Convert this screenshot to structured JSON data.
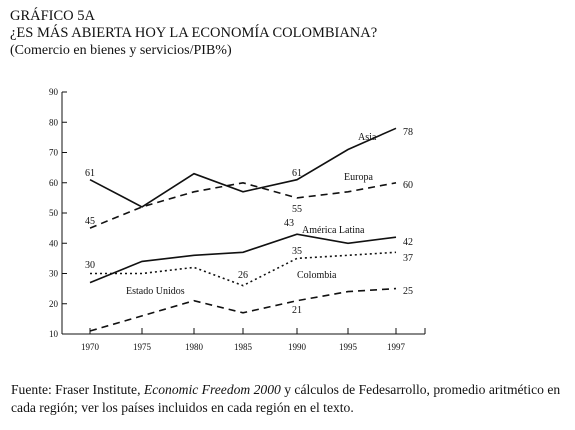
{
  "header": {
    "figure_number": "GRÁFICO 5A",
    "title": "¿ES MÁS ABIERTA HOY LA ECONOMÍA COLOMBIANA?",
    "subtitle": "(Comercio en bienes y servicios/PIB%)"
  },
  "source": {
    "prefix": "Fuente: Fraser Institute,",
    "publication": "Economic Freedom 2000",
    "rest": "y cálculos de Fedesarrollo, promedio aritmético en cada región; ver los países incluidos en cada región en el texto."
  },
  "chart_data": {
    "type": "line",
    "x": [
      1970,
      1975,
      1980,
      1985,
      1990,
      1995,
      1997
    ],
    "xticks": [
      "1970",
      "1975",
      "1980",
      "1985",
      "1990",
      "1995",
      "1997"
    ],
    "ylim": [
      10,
      90
    ],
    "yticks": [
      "10",
      "20",
      "30",
      "40",
      "50",
      "60",
      "70",
      "80",
      "90"
    ],
    "series": [
      {
        "name": "Asia",
        "style": "solid",
        "values": [
          61,
          52,
          63,
          57,
          61,
          71,
          78
        ]
      },
      {
        "name": "Europa",
        "style": "dashed",
        "values": [
          45,
          52,
          57,
          60,
          55,
          57,
          60
        ]
      },
      {
        "name": "América Latina",
        "style": "solid",
        "values": [
          27,
          34,
          36,
          37,
          43,
          40,
          42
        ]
      },
      {
        "name": "Colombia",
        "style": "dotted",
        "values": [
          30,
          30,
          32,
          26,
          35,
          36,
          37
        ]
      },
      {
        "name": "Estado Unidos",
        "style": "dashed",
        "values": [
          11,
          16,
          21,
          17,
          21,
          24,
          25
        ]
      }
    ],
    "value_labels": [
      "61",
      "61",
      "78",
      "45",
      "55",
      "60",
      "43",
      "42",
      "30",
      "26",
      "35",
      "37",
      "21",
      "25"
    ],
    "colors": {
      "lines": "#111111",
      "axis": "#111111"
    },
    "grid": false
  }
}
